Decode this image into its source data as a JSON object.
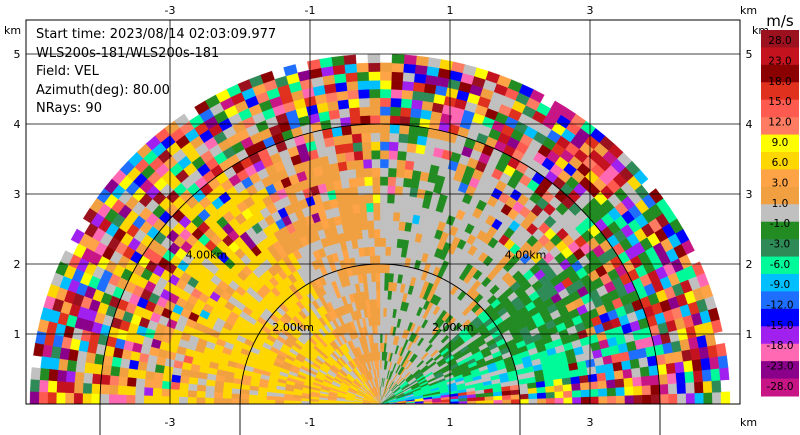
{
  "info": {
    "start_time": "Start time: 2023/08/14 02:03:09.977",
    "instrument": "WLS200s-181/WLS200s-181",
    "field": "Field: VEL",
    "azimuth": "Azimuth(deg): 80.00",
    "nrays": "NRays: 90"
  },
  "chart_data": {
    "type": "heatmap",
    "subtype": "polar-sector-scan",
    "field": "VEL",
    "units_label": "m/s",
    "x_axis": {
      "unit_label": "km",
      "ticks": [
        -3,
        -1,
        1,
        3
      ],
      "range": [
        -6,
        4.4
      ]
    },
    "y_axis": {
      "unit_label": "km",
      "ticks": [
        1,
        2,
        3,
        4,
        5
      ],
      "range": [
        0,
        5.7
      ]
    },
    "range_rings": [
      {
        "label": "2.00km",
        "radius_km": 2.0
      },
      {
        "label": "4.00km",
        "radius_km": 4.0
      }
    ],
    "max_range_km": 5.0,
    "grid": true,
    "colorbar": {
      "position": "right",
      "labels": [
        "28.0",
        "23.0",
        "18.0",
        "15.0",
        "12.0",
        "9.0",
        "6.0",
        "3.0",
        "1.0",
        "-1.0",
        "-3.0",
        "-6.0",
        "-9.0",
        "-12.0",
        "-15.0",
        "-18.0",
        "-23.0",
        "-28.0"
      ],
      "colors": [
        "#9b111e",
        "#c4121e",
        "#8b0000",
        "#e0301e",
        "#ff5a50",
        "#ff7b61",
        "#ffff00",
        "#ffd700",
        "#ffa347",
        "#f0a040",
        "#c0c0c0",
        "#228b22",
        "#2e8b57",
        "#00fa9a",
        "#00bfff",
        "#1e6fff",
        "#0000ff",
        "#a020f0",
        "#ff69b4",
        "#8b008b",
        "#c71585"
      ]
    },
    "regions": [
      {
        "azimuth": [
          0,
          10
        ],
        "velocity_class": "mixed"
      },
      {
        "azimuth": [
          10,
          40
        ],
        "velocity_class": "green"
      },
      {
        "azimuth": [
          40,
          90
        ],
        "velocity_class": "gray"
      },
      {
        "azimuth": [
          90,
          120
        ],
        "velocity_class": "orange"
      },
      {
        "azimuth": [
          120,
          180
        ],
        "velocity_class": "yellow"
      }
    ]
  }
}
